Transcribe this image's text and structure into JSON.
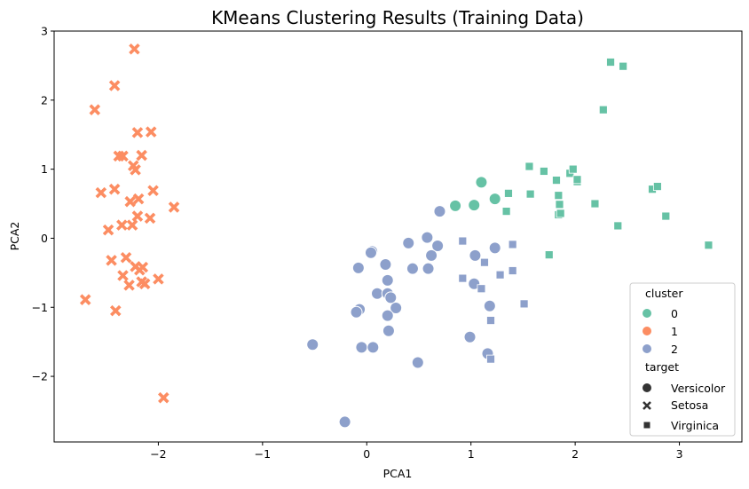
{
  "chart_data": {
    "type": "scatter",
    "title": "KMeans Clustering Results (Training Data)",
    "xlabel": "PCA1",
    "ylabel": "PCA2",
    "xlim": [
      -3.0,
      3.6
    ],
    "ylim": [
      -2.95,
      3.0
    ],
    "xticks": [
      -2,
      -1,
      0,
      1,
      2,
      3
    ],
    "yticks": [
      -2,
      -1,
      0,
      1,
      2,
      3
    ],
    "grid": false,
    "legend_position": "lower-right",
    "legend": {
      "hue_title": "cluster",
      "hue_entries": [
        {
          "label": "0",
          "color": "#66c2a5"
        },
        {
          "label": "1",
          "color": "#fc8d62"
        },
        {
          "label": "2",
          "color": "#8da0cb"
        }
      ],
      "style_title": "target",
      "style_entries": [
        {
          "label": "Versicolor",
          "marker": "circle"
        },
        {
          "label": "Setosa",
          "marker": "x"
        },
        {
          "label": "Virginica",
          "marker": "square"
        }
      ]
    },
    "series": [
      {
        "cluster": "0",
        "target": "Versicolor",
        "marker": "circle",
        "color": "#66c2a5",
        "points": [
          [
            0.85,
            0.47
          ],
          [
            1.03,
            0.48
          ],
          [
            1.1,
            0.81
          ],
          [
            1.23,
            0.57
          ]
        ]
      },
      {
        "cluster": "0",
        "target": "Virginica",
        "marker": "square",
        "color": "#66c2a5",
        "points": [
          [
            1.34,
            0.39
          ],
          [
            1.36,
            0.65
          ],
          [
            1.56,
            1.04
          ],
          [
            1.57,
            0.64
          ],
          [
            1.7,
            0.97
          ],
          [
            1.75,
            -0.24
          ],
          [
            1.82,
            0.84
          ],
          [
            1.84,
            0.62
          ],
          [
            1.84,
            0.34
          ],
          [
            1.85,
            0.49
          ],
          [
            1.86,
            0.36
          ],
          [
            1.95,
            0.94
          ],
          [
            1.98,
            1.0
          ],
          [
            2.02,
            0.82
          ],
          [
            2.02,
            0.85
          ],
          [
            2.19,
            0.5
          ],
          [
            2.27,
            1.86
          ],
          [
            2.34,
            2.55
          ],
          [
            2.41,
            0.18
          ],
          [
            2.46,
            2.49
          ],
          [
            2.74,
            0.71
          ],
          [
            2.79,
            0.75
          ],
          [
            2.87,
            0.32
          ],
          [
            3.28,
            -0.1
          ]
        ]
      },
      {
        "cluster": "1",
        "target": "Setosa",
        "marker": "x",
        "color": "#fc8d62",
        "points": [
          [
            -2.23,
            2.74
          ],
          [
            -2.42,
            2.21
          ],
          [
            -2.61,
            1.86
          ],
          [
            -2.2,
            1.53
          ],
          [
            -2.07,
            1.54
          ],
          [
            -2.38,
            1.19
          ],
          [
            -2.34,
            1.19
          ],
          [
            -2.16,
            1.2
          ],
          [
            -2.24,
            1.05
          ],
          [
            -2.22,
            0.99
          ],
          [
            -2.55,
            0.66
          ],
          [
            -2.42,
            0.71
          ],
          [
            -2.05,
            0.69
          ],
          [
            -2.27,
            0.53
          ],
          [
            -2.19,
            0.57
          ],
          [
            -1.85,
            0.45
          ],
          [
            -2.2,
            0.32
          ],
          [
            -2.08,
            0.29
          ],
          [
            -2.35,
            0.19
          ],
          [
            -2.25,
            0.19
          ],
          [
            -2.48,
            0.12
          ],
          [
            -2.31,
            -0.28
          ],
          [
            -2.45,
            -0.32
          ],
          [
            -2.22,
            -0.41
          ],
          [
            -2.15,
            -0.42
          ],
          [
            -2.18,
            -0.46
          ],
          [
            -2.34,
            -0.54
          ],
          [
            -2.0,
            -0.59
          ],
          [
            -2.28,
            -0.68
          ],
          [
            -2.13,
            -0.66
          ],
          [
            -2.16,
            -0.63
          ],
          [
            -2.7,
            -0.89
          ],
          [
            -2.41,
            -1.05
          ],
          [
            -1.95,
            -2.31
          ]
        ]
      },
      {
        "cluster": "2",
        "target": "Versicolor",
        "marker": "circle",
        "color": "#8da0cb",
        "points": [
          [
            0.7,
            0.39
          ],
          [
            0.58,
            0.01
          ],
          [
            0.4,
            -0.07
          ],
          [
            0.68,
            -0.11
          ],
          [
            0.05,
            -0.19
          ],
          [
            0.04,
            -0.21
          ],
          [
            1.23,
            -0.14
          ],
          [
            0.62,
            -0.25
          ],
          [
            1.04,
            -0.25
          ],
          [
            -0.08,
            -0.43
          ],
          [
            0.18,
            -0.38
          ],
          [
            0.44,
            -0.44
          ],
          [
            0.59,
            -0.44
          ],
          [
            0.2,
            -0.61
          ],
          [
            1.03,
            -0.66
          ],
          [
            0.1,
            -0.8
          ],
          [
            0.2,
            -0.8
          ],
          [
            0.23,
            -0.86
          ],
          [
            0.28,
            -1.01
          ],
          [
            1.18,
            -0.98
          ],
          [
            -0.07,
            -1.03
          ],
          [
            -0.1,
            -1.07
          ],
          [
            0.2,
            -1.12
          ],
          [
            0.21,
            -1.34
          ],
          [
            0.99,
            -1.43
          ],
          [
            -0.52,
            -1.54
          ],
          [
            -0.05,
            -1.58
          ],
          [
            0.06,
            -1.58
          ],
          [
            1.16,
            -1.67
          ],
          [
            0.49,
            -1.8
          ],
          [
            -0.21,
            -2.66
          ]
        ]
      },
      {
        "cluster": "2",
        "target": "Virginica",
        "marker": "square",
        "color": "#8da0cb",
        "points": [
          [
            1.4,
            -0.09
          ],
          [
            0.92,
            -0.04
          ],
          [
            1.13,
            -0.35
          ],
          [
            1.4,
            -0.47
          ],
          [
            0.92,
            -0.58
          ],
          [
            1.28,
            -0.53
          ],
          [
            1.1,
            -0.73
          ],
          [
            1.51,
            -0.95
          ],
          [
            1.19,
            -1.19
          ],
          [
            1.19,
            -1.75
          ]
        ]
      }
    ]
  }
}
